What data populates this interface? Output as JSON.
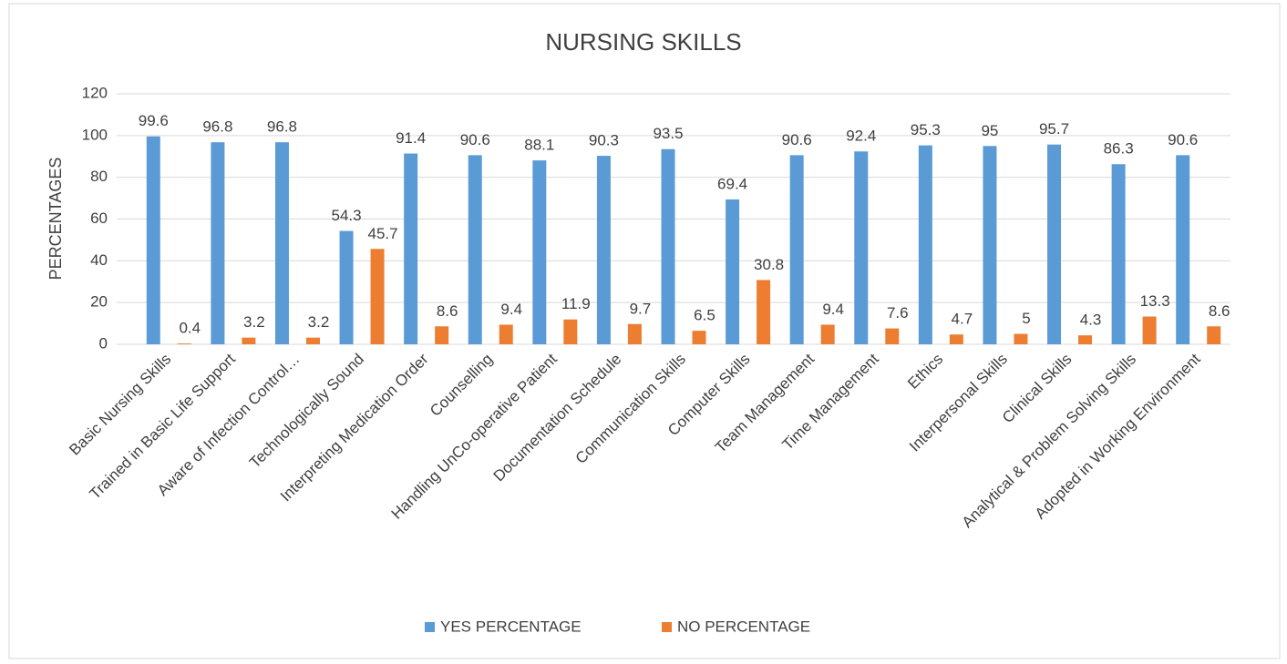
{
  "chart_data": {
    "type": "bar",
    "title": "NURSING SKILLS",
    "y_label": "PERCENTAGES",
    "categories": [
      "Basic Nursing Skills",
      "Trained in Basic Life Support",
      "Aware of Infection Control…",
      "Technologically Sound",
      "Interpreting Medication Order",
      "Counselling",
      "Handling UnCo-operative Patient",
      "Documentation Schedule",
      "Communication Skills",
      "Computer Skills",
      "Team Management",
      "Time Management",
      "Ethics",
      "Interpersonal Skills",
      "Clinical Skills",
      "Analytical & Problem Solving Skills",
      "Adopted in Working Environment"
    ],
    "series": [
      {
        "name": "YES PERCENTAGE",
        "color": "#5b9bd5",
        "values": [
          99.6,
          96.8,
          96.8,
          54.3,
          91.4,
          90.6,
          88.1,
          90.3,
          93.5,
          69.4,
          90.6,
          92.4,
          95.3,
          95,
          95.7,
          86.3,
          90.6
        ]
      },
      {
        "name": "NO PERCENTAGE",
        "color": "#ed7d31",
        "values": [
          0.4,
          3.2,
          3.2,
          45.7,
          8.6,
          9.4,
          11.9,
          9.7,
          6.5,
          30.8,
          9.4,
          7.6,
          4.7,
          5,
          4.3,
          13.3,
          8.6
        ]
      }
    ],
    "ylim": [
      0,
      120
    ],
    "yticks": [
      0,
      20,
      40,
      60,
      80,
      100,
      120
    ],
    "grid": true,
    "legend": "bottom"
  }
}
